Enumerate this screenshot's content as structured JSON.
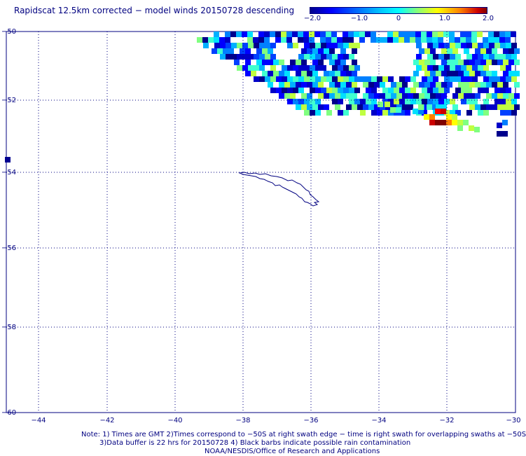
{
  "title": "Rapidscat 12.5km corrected − model winds 20150728 descending",
  "colorbar": {
    "labels": [
      "−2.0",
      "−1.0",
      "0",
      "1.0",
      "2.0"
    ],
    "min": -2.0,
    "max": 2.0
  },
  "axes": {
    "lon_ticks": [
      "−44",
      "−42",
      "−40",
      "−38",
      "−36",
      "−34",
      "−32",
      "−30"
    ],
    "lat_ticks": [
      "−50",
      "−52",
      "−54",
      "−56",
      "−58",
      "−60"
    ],
    "lon_range": [
      -45,
      -30
    ],
    "lat_range": [
      -60,
      -50
    ],
    "grid": "dotted"
  },
  "notes": {
    "line1": "Note: 1) Times are GMT 2)Times correspond to −50S at right swath edge − time is right swath for overlapping swaths at −50S",
    "line2": "3)Data buffer is 22 hrs for 20150728 4) Black barbs indicate possible rain contamination",
    "line3": "NOAA/NESDIS/Office of Research and Applications"
  },
  "features": {
    "island": "South Georgia coastline",
    "swath_region": "Rapidscat swath data, northeast corner"
  }
}
